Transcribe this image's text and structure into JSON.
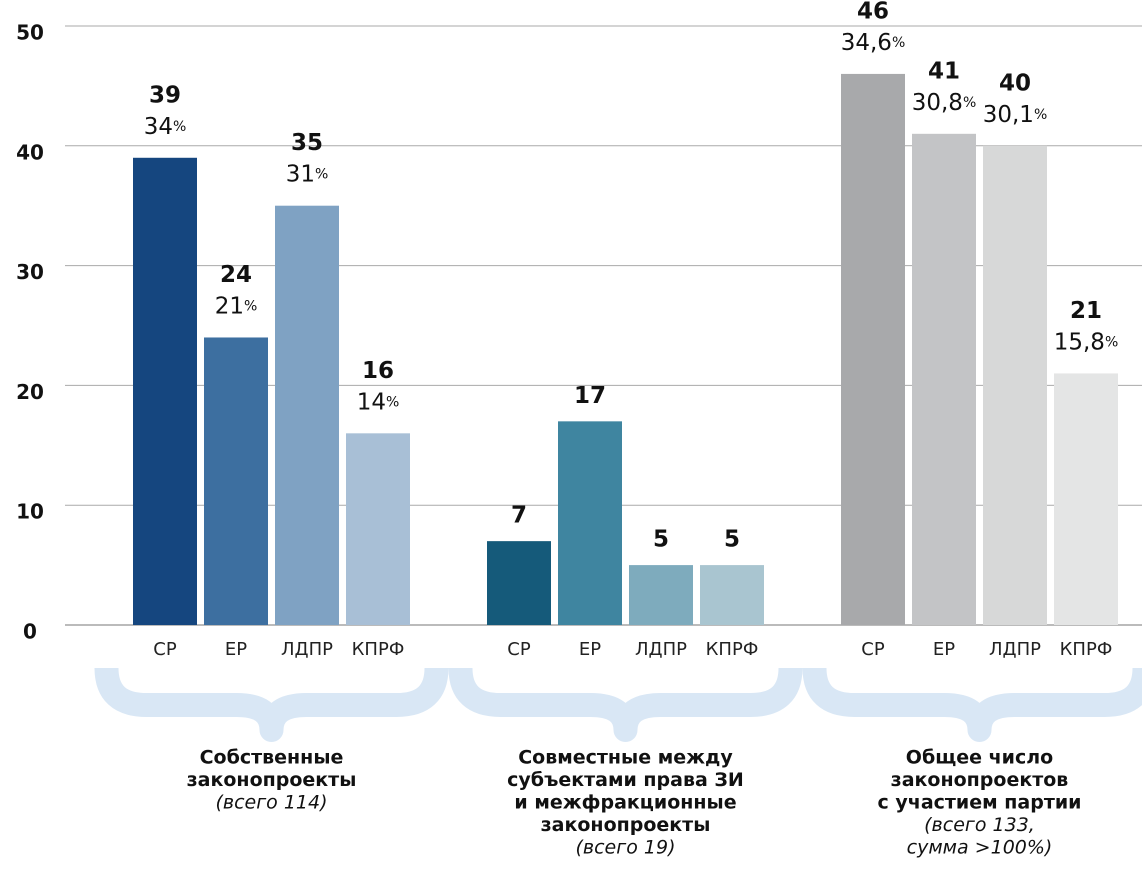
{
  "chart_data": {
    "type": "bar",
    "ylim": [
      0,
      50
    ],
    "yticks": [
      0,
      10,
      20,
      30,
      40,
      50
    ],
    "grid": true,
    "groups": [
      {
        "label": [
          "Собственные",
          "законопроекты"
        ],
        "note": [
          "(всего 114)"
        ],
        "categories": [
          "СР",
          "ЕР",
          "ЛДПР",
          "КПРФ"
        ],
        "values": [
          39,
          24,
          35,
          16
        ],
        "shares": [
          "34%",
          "21%",
          "31%",
          "14%"
        ],
        "colors": [
          "#15467f",
          "#3d6fa0",
          "#7fa2c3",
          "#a8bfd6"
        ]
      },
      {
        "label": [
          "Совместные между",
          "субъектами права ЗИ",
          "и межфракционные",
          "законопроекты"
        ],
        "note": [
          "(всего 19)"
        ],
        "categories": [
          "СР",
          "ЕР",
          "ЛДПР",
          "КПРФ"
        ],
        "values": [
          7,
          17,
          5,
          5
        ],
        "colors": [
          "#155a7a",
          "#3f85a0",
          "#7eabbd",
          "#a9c5d0"
        ]
      },
      {
        "label": [
          "Общее число",
          "законопроектов",
          "с участием партии"
        ],
        "note": [
          "(всего 133,",
          "сумма >100%)"
        ],
        "categories": [
          "СР",
          "ЕР",
          "ЛДПР",
          "КПРФ"
        ],
        "values": [
          46,
          41,
          40,
          21
        ],
        "shares": [
          "34,6%",
          "30,8%",
          "30,1%",
          "15,8%"
        ],
        "colors": [
          "#a8a9ab",
          "#c3c4c6",
          "#d7d8d8",
          "#e4e5e5"
        ]
      }
    ]
  }
}
